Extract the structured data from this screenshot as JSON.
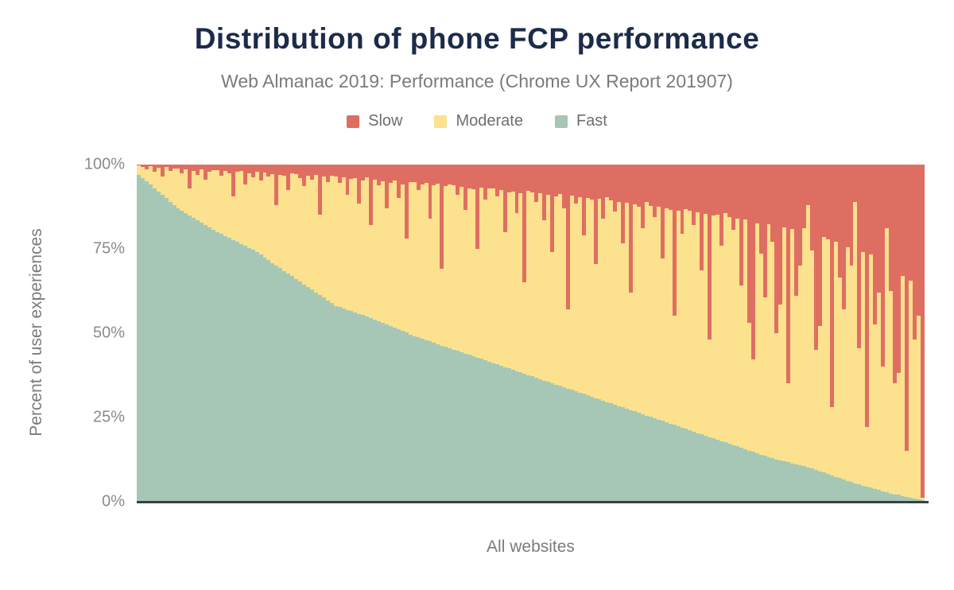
{
  "chart_data": {
    "type": "bar",
    "stacked": true,
    "orientation": "vertical",
    "title": "Distribution of phone FCP performance",
    "subtitle": "Web Almanac 2019: Performance (Chrome UX Report 201907)",
    "xlabel": "All websites",
    "ylabel": "Percent of user experiences",
    "ylim": [
      0,
      100
    ],
    "grid": false,
    "legend_position": "top",
    "colors": {
      "slow": "#df6e62",
      "moderate": "#fce18e",
      "fast": "#a6c7b5",
      "axis": "#3a3f4a"
    },
    "legend": [
      {
        "label": "Slow",
        "color": "#df6e62"
      },
      {
        "label": "Moderate",
        "color": "#fce18e"
      },
      {
        "label": "Fast",
        "color": "#a6c7b5"
      }
    ],
    "yticks": [
      {
        "label": "100%",
        "value": 100
      },
      {
        "label": "75%",
        "value": 75
      },
      {
        "label": "50%",
        "value": 50
      },
      {
        "label": "25%",
        "value": 25
      },
      {
        "label": "0%",
        "value": 0
      }
    ],
    "bars": {
      "count": 200,
      "x_meaning": "websites sorted by percent of fast FCP experiences (descending)",
      "fast_pct": [
        97,
        96,
        95,
        94,
        93,
        92,
        91,
        90,
        89,
        88,
        87,
        86.3,
        85.6,
        84.9,
        84.2,
        83.5,
        82.8,
        82.1,
        81.4,
        80.7,
        80,
        79.4,
        78.8,
        78.2,
        77.6,
        77,
        76.4,
        75.8,
        75.2,
        74.6,
        74,
        73.2,
        72.4,
        71.6,
        70.8,
        70,
        69.2,
        68.4,
        67.6,
        66.8,
        66,
        65.2,
        64.4,
        63.6,
        62.8,
        62,
        61.2,
        60.4,
        59.6,
        58.8,
        58,
        57.6,
        57.2,
        56.8,
        56.4,
        56,
        55.6,
        55.2,
        54.8,
        54.4,
        54,
        53.5,
        53,
        52.5,
        52,
        51.5,
        51,
        50.5,
        50,
        49.5,
        49,
        48.6,
        48.2,
        47.8,
        47.4,
        47,
        46.6,
        46.2,
        45.8,
        45.4,
        45,
        44.6,
        44.2,
        43.8,
        43.4,
        43,
        42.6,
        42.2,
        41.8,
        41.4,
        41,
        40.6,
        40.2,
        39.8,
        39.4,
        39,
        38.6,
        38.2,
        37.8,
        37.4,
        37,
        36.6,
        36.2,
        35.8,
        35.4,
        35,
        34.6,
        34.2,
        33.8,
        33.4,
        33,
        32.6,
        32.2,
        31.8,
        31.4,
        31,
        30.6,
        30.2,
        29.8,
        29.4,
        29,
        28.6,
        28.2,
        27.8,
        27.4,
        27,
        26.6,
        26.2,
        25.8,
        25.4,
        25,
        24.6,
        24.2,
        23.8,
        23.4,
        23,
        22.6,
        22.2,
        21.8,
        21.4,
        21,
        20.6,
        20.2,
        19.8,
        19.4,
        19,
        18.6,
        18.2,
        17.8,
        17.4,
        17,
        16.6,
        16.2,
        15.8,
        15.4,
        15,
        14.6,
        14.2,
        13.8,
        13.4,
        13,
        12.7,
        12.4,
        12.1,
        11.8,
        11.5,
        11.2,
        10.9,
        10.6,
        10.3,
        10,
        9.6,
        9.2,
        8.8,
        8.4,
        8,
        7.6,
        7.2,
        6.8,
        6.4,
        6,
        5.7,
        5.3,
        5,
        4.6,
        4.2,
        3.9,
        3.6,
        3.2,
        2.9,
        2.5,
        2.2,
        2,
        1.8,
        1.5,
        1.2,
        1,
        0.8,
        0.5,
        0.3
      ],
      "fast_plus_moderate_pct": [
        99.8,
        99.2,
        98.6,
        99.5,
        97.8,
        99,
        96.5,
        99.3,
        98,
        98.8,
        98.9,
        97.5,
        98.6,
        93,
        98.2,
        97,
        98.5,
        95.5,
        97.8,
        98.3,
        98.4,
        96.8,
        98,
        97.4,
        90.5,
        97.8,
        98.2,
        94,
        97.5,
        96.2,
        97.9,
        95.2,
        97.6,
        96.5,
        97.2,
        88,
        97,
        96.8,
        92.5,
        97.4,
        97.2,
        96,
        93.5,
        96.8,
        95.5,
        97,
        85,
        96.4,
        94.8,
        96.6,
        96.5,
        94.5,
        96.2,
        91,
        95.8,
        96,
        88.5,
        95.2,
        96.3,
        82,
        95.4,
        93.8,
        95,
        87,
        94.6,
        95.2,
        90,
        94,
        78,
        94.8,
        94.8,
        92.5,
        94.2,
        94.6,
        84,
        93.8,
        94.4,
        69,
        93.5,
        94,
        93.8,
        91,
        93.4,
        86.5,
        93,
        92.6,
        75,
        93.2,
        89.5,
        92.8,
        92.8,
        90.5,
        92.4,
        80,
        91.8,
        92,
        85.5,
        91.5,
        65,
        92.2,
        91.8,
        89,
        91.4,
        83.5,
        91,
        74,
        90.6,
        91.2,
        87,
        57,
        90.8,
        88.5,
        90.4,
        79,
        90,
        89.5,
        70.5,
        89.8,
        84,
        90.2,
        89.4,
        86,
        89,
        76.5,
        88.6,
        62,
        88.2,
        87.5,
        81,
        88.8,
        87.8,
        84.5,
        87.4,
        72,
        87,
        86.5,
        55,
        86.2,
        79.5,
        86.8,
        86.2,
        82,
        85.8,
        68.5,
        85.4,
        48,
        84.8,
        85,
        76,
        85.6,
        84.4,
        80.5,
        84,
        64,
        83.6,
        53,
        42,
        82.6,
        73.5,
        60.5,
        82.2,
        77,
        50,
        58.5,
        81.4,
        35,
        80.8,
        61,
        70,
        81,
        88,
        74.5,
        45,
        52,
        78.4,
        77.8,
        28,
        77,
        66.5,
        57,
        75.5,
        70,
        89,
        45.5,
        74,
        22,
        73.2,
        52.5,
        62,
        40,
        81,
        62.5,
        35,
        38,
        66.8,
        15,
        65.5,
        48,
        55,
        1
      ],
      "slow_pct_note": "slow = 100 - fast_plus_moderate_pct for each bar"
    }
  }
}
